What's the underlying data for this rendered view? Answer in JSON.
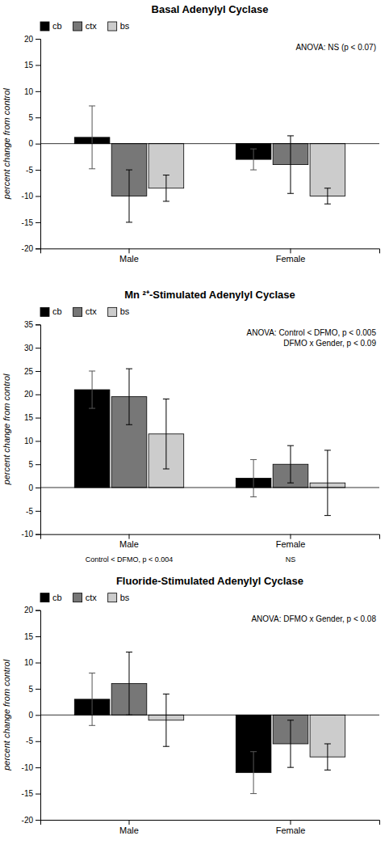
{
  "chart_data": [
    {
      "type": "bar",
      "title": "Basal Adenylyl Cyclase",
      "y_label": "percent change from control",
      "categories": [
        "Male",
        "Female"
      ],
      "series": [
        {
          "name": "cb",
          "color": "#000000",
          "values": [
            1.2,
            -3.0
          ],
          "errors": [
            6.0,
            2.0
          ]
        },
        {
          "name": "ctx",
          "color": "#777777",
          "values": [
            -10.0,
            -4.0
          ],
          "errors": [
            5.0,
            5.5
          ]
        },
        {
          "name": "bs",
          "color": "#cccccc",
          "values": [
            -8.5,
            -10.0
          ],
          "errors": [
            2.5,
            1.5
          ]
        }
      ],
      "ylim": [
        -20,
        20
      ],
      "yticks": [
        -20,
        -15,
        -10,
        -5,
        0,
        5,
        10,
        15,
        20
      ],
      "annotations": [
        "ANOVA: NS (p < 0.07)"
      ],
      "legend": "upper left",
      "grid": false
    },
    {
      "type": "bar",
      "title": "Mn ²⁺-Stimulated Adenylyl Cyclase",
      "y_label": "percent change from control",
      "categories": [
        "Male",
        "Female"
      ],
      "series": [
        {
          "name": "cb",
          "color": "#000000",
          "values": [
            21.0,
            2.0
          ],
          "errors": [
            4.0,
            4.0
          ]
        },
        {
          "name": "ctx",
          "color": "#777777",
          "values": [
            19.5,
            5.0
          ],
          "errors": [
            6.0,
            4.0
          ]
        },
        {
          "name": "bs",
          "color": "#cccccc",
          "values": [
            11.5,
            1.0
          ],
          "errors": [
            7.5,
            7.0
          ]
        }
      ],
      "ylim": [
        -10,
        35
      ],
      "yticks": [
        -10,
        -5,
        0,
        5,
        10,
        15,
        20,
        25,
        30,
        35
      ],
      "annotations": [
        "ANOVA: Control < DFMO, p < 0.005",
        "DFMO x Gender, p < 0.09"
      ],
      "x_annotations": [
        "Control < DFMO, p < 0.004",
        "NS"
      ],
      "legend": "upper left",
      "grid": false
    },
    {
      "type": "bar",
      "title": "Fluoride-Stimulated Adenylyl Cyclase",
      "y_label": "percent change from control",
      "categories": [
        "Male",
        "Female"
      ],
      "series": [
        {
          "name": "cb",
          "color": "#000000",
          "values": [
            3.0,
            -11.0
          ],
          "errors": [
            5.0,
            4.0
          ]
        },
        {
          "name": "ctx",
          "color": "#777777",
          "values": [
            6.0,
            -5.5
          ],
          "errors": [
            6.0,
            4.5
          ]
        },
        {
          "name": "bs",
          "color": "#cccccc",
          "values": [
            -1.0,
            -8.0
          ],
          "errors": [
            5.0,
            2.5
          ]
        }
      ],
      "ylim": [
        -20,
        20
      ],
      "yticks": [
        -20,
        -15,
        -10,
        -5,
        0,
        5,
        10,
        15,
        20
      ],
      "annotations": [
        "ANOVA: DFMO x Gender, p < 0.08"
      ],
      "legend": "upper left",
      "grid": false
    }
  ]
}
